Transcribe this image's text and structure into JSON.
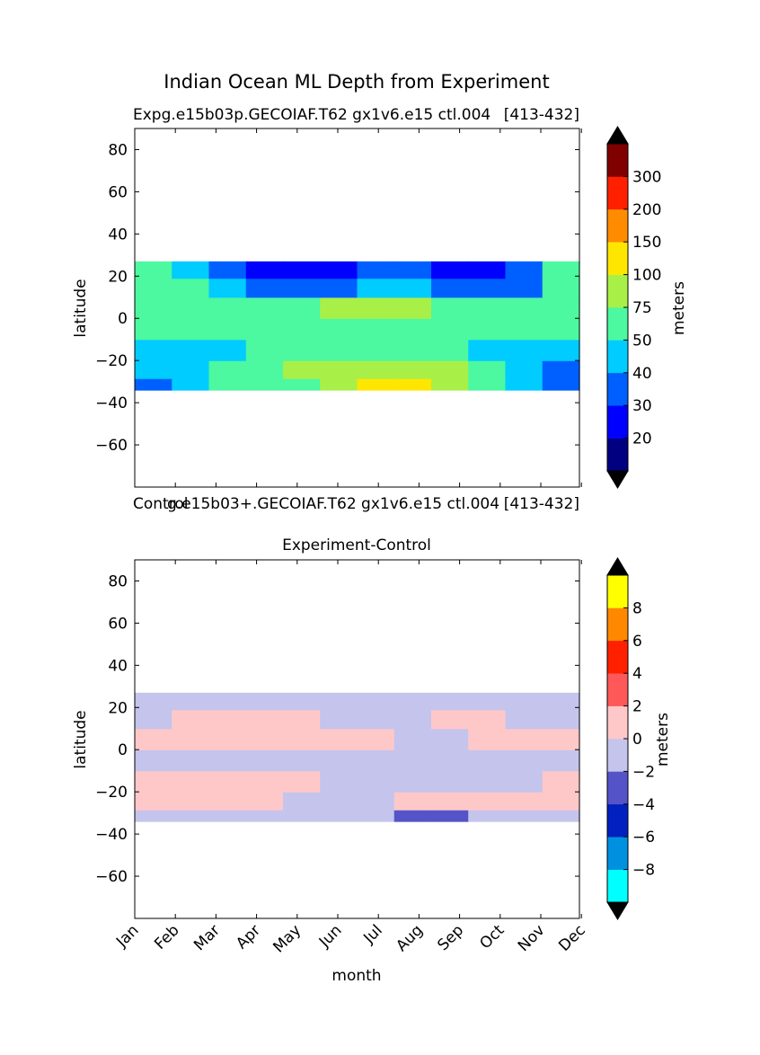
{
  "figure": {
    "suptitle": "Indian Ocean ML Depth from Experiment"
  },
  "panels": {
    "top": {
      "title_left": "Expg.e15b03p.GECOIAF.T62 gx1v6.e15 ctl.004",
      "title_right": "[413-432]",
      "ylabel": "latitude"
    },
    "middle_label": {
      "left": "Control",
      "middle": "g.e15b03+.GECOIAF.T62 gx1v6.e15 ctl.004",
      "right": "[413-432]"
    },
    "bottom": {
      "title": "Experiment-Control",
      "ylabel": "latitude",
      "xlabel": "month"
    }
  },
  "colorbars": {
    "top": {
      "label": "meters",
      "levels": [
        "20",
        "30",
        "40",
        "50",
        "75",
        "100",
        "150",
        "200",
        "300"
      ],
      "colors": [
        "#000080",
        "#0000ff",
        "#0060ff",
        "#00ccff",
        "#4cf8a0",
        "#a8f048",
        "#ffe600",
        "#ff8c00",
        "#ff2000",
        "#800000"
      ],
      "extend_min_color": "#000000",
      "extend_max_color": "#000000"
    },
    "bottom": {
      "label": "meters",
      "levels": [
        "-8",
        "-6",
        "-4",
        "-2",
        "0",
        "2",
        "4",
        "6",
        "8"
      ],
      "colors": [
        "#00ffff",
        "#0090e0",
        "#0020c0",
        "#5454c8",
        "#c4c4ec",
        "#ffc8c8",
        "#ff5858",
        "#ff2000",
        "#ff8800",
        "#ffff00"
      ],
      "extend_min_color": "#000000",
      "extend_max_color": "#000000"
    }
  },
  "chart_data": [
    {
      "type": "heatmap",
      "title": "Expg.e15b03p.GECOIAF.T62 gx1v6.e15 ctl.004 [413-432]",
      "xlabel": "",
      "ylabel": "latitude",
      "ylim": [
        -80,
        90
      ],
      "yticks": [
        80,
        60,
        40,
        20,
        0,
        -20,
        -40,
        -60
      ],
      "data_lat_range": [
        -34,
        27
      ],
      "x": [
        "Jan",
        "Feb",
        "Mar",
        "Apr",
        "May",
        "Jun",
        "Jul",
        "Aug",
        "Sep",
        "Oct",
        "Nov",
        "Dec"
      ],
      "y": [
        -32,
        -25,
        -15,
        -5,
        5,
        15,
        23
      ],
      "z": [
        [
          30,
          40,
          50,
          50,
          50,
          75,
          100,
          100,
          75,
          50,
          40,
          30
        ],
        [
          40,
          40,
          50,
          50,
          75,
          75,
          75,
          75,
          75,
          50,
          40,
          30
        ],
        [
          40,
          40,
          40,
          50,
          50,
          50,
          50,
          50,
          50,
          40,
          40,
          40
        ],
        [
          50,
          50,
          50,
          50,
          50,
          50,
          50,
          50,
          50,
          50,
          50,
          50
        ],
        [
          50,
          50,
          50,
          50,
          50,
          75,
          75,
          75,
          50,
          50,
          50,
          50
        ],
        [
          50,
          50,
          40,
          30,
          30,
          30,
          40,
          40,
          30,
          30,
          30,
          50
        ],
        [
          50,
          40,
          30,
          20,
          20,
          20,
          30,
          30,
          20,
          20,
          30,
          50
        ]
      ],
      "colorbar_label": "meters"
    },
    {
      "type": "heatmap",
      "title": "Experiment-Control",
      "xlabel": "month",
      "ylabel": "latitude",
      "ylim": [
        -80,
        90
      ],
      "yticks": [
        80,
        60,
        40,
        20,
        0,
        -20,
        -40,
        -60
      ],
      "data_lat_range": [
        -34,
        27
      ],
      "x": [
        "Jan",
        "Feb",
        "Mar",
        "Apr",
        "May",
        "Jun",
        "Jul",
        "Aug",
        "Sep",
        "Oct",
        "Nov",
        "Dec"
      ],
      "y": [
        -32,
        -25,
        -15,
        -5,
        5,
        15,
        23
      ],
      "z": [
        [
          -1,
          -1,
          -1,
          -1,
          -1,
          -1,
          -1,
          -3,
          -3,
          -1,
          -1,
          -1
        ],
        [
          1,
          1,
          1,
          1,
          -1,
          -1,
          -1,
          1,
          1,
          1,
          1,
          1
        ],
        [
          1,
          1,
          1,
          1,
          1,
          -1,
          -1,
          -1,
          -1,
          -1,
          -1,
          1
        ],
        [
          -1,
          -1,
          -1,
          -1,
          -1,
          -1,
          -1,
          -1,
          -1,
          -1,
          -1,
          -1
        ],
        [
          1,
          1,
          1,
          1,
          1,
          1,
          1,
          -1,
          -1,
          1,
          1,
          1
        ],
        [
          -1,
          1,
          1,
          1,
          1,
          -1,
          -1,
          -1,
          1,
          1,
          -1,
          -1
        ],
        [
          -1,
          -1,
          -1,
          -1,
          -1,
          -1,
          -1,
          -1,
          -1,
          -1,
          -1,
          -1
        ]
      ],
      "colorbar_label": "meters"
    }
  ]
}
